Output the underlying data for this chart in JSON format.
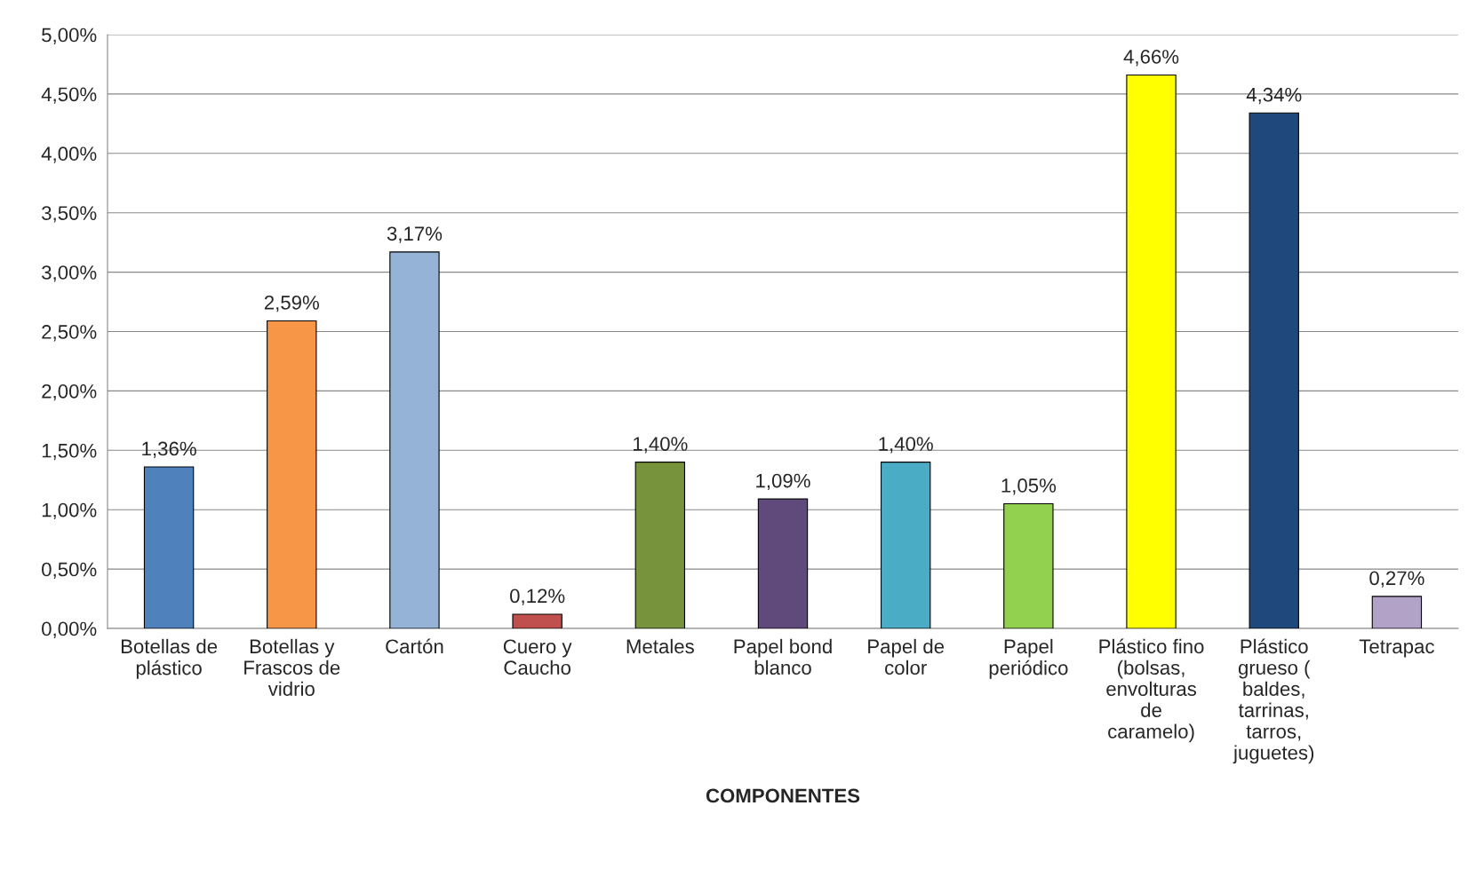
{
  "chart_data": {
    "type": "bar",
    "xlabel": "COMPONENTES",
    "categories": [
      "Botellas de\nplástico",
      "Botellas y\nFrascos de\nvidrio",
      "Cartón",
      "Cuero y\nCaucho",
      "Metales",
      "Papel bond\nblanco",
      "Papel de\ncolor",
      "Papel\nperiódico",
      "Plástico fino\n(bolsas,\nenvolturas\nde\ncaramelo)",
      "Plástico\ngrueso (\nbaldes,\ntarrinas,\ntarros,\njuguetes)",
      "Tetrapac"
    ],
    "values": [
      1.36,
      2.59,
      3.17,
      0.12,
      1.4,
      1.09,
      1.4,
      1.05,
      4.66,
      4.34,
      0.27
    ],
    "value_labels": [
      "1,36%",
      "2,59%",
      "3,17%",
      "0,12%",
      "1,40%",
      "1,09%",
      "1,40%",
      "1,05%",
      "4,66%",
      "4,34%",
      "0,27%"
    ],
    "colors": [
      "#4f81bd",
      "#f79646",
      "#95b3d7",
      "#c0504d",
      "#77933c",
      "#604a7b",
      "#4bacc6",
      "#92d050",
      "#ffff00",
      "#1f497d",
      "#b3a2c7"
    ],
    "ylim": [
      0,
      5
    ],
    "yticks": [
      {
        "value": 0,
        "label": "0,00%"
      },
      {
        "value": 0.5,
        "label": "0,50%"
      },
      {
        "value": 1,
        "label": "1,00%"
      },
      {
        "value": 1.5,
        "label": "1,50%"
      },
      {
        "value": 2,
        "label": "2,00%"
      },
      {
        "value": 2.5,
        "label": "2,50%"
      },
      {
        "value": 3,
        "label": "3,00%"
      },
      {
        "value": 3.5,
        "label": "3,50%"
      },
      {
        "value": 4,
        "label": "4,00%"
      },
      {
        "value": 4.5,
        "label": "4,50%"
      },
      {
        "value": 5,
        "label": "5,00%"
      }
    ],
    "grid": "y"
  }
}
